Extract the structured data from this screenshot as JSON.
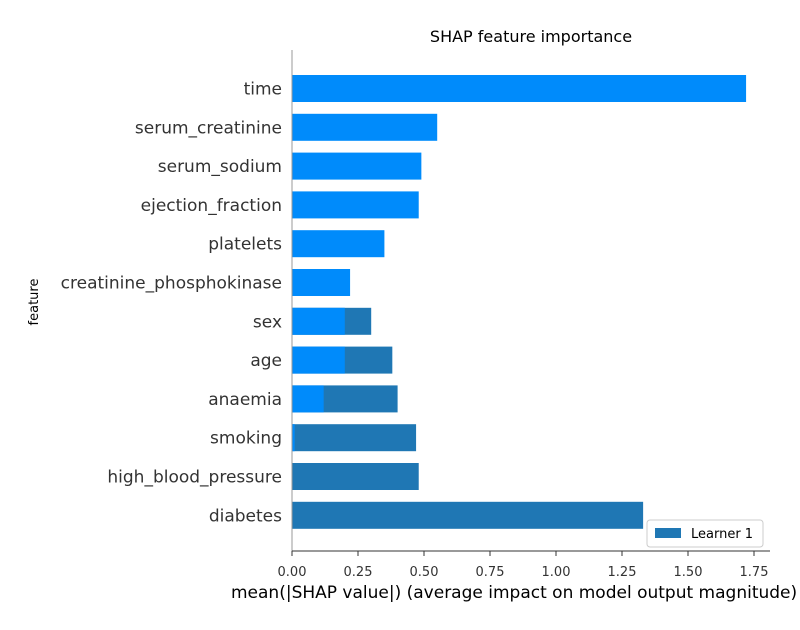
{
  "chart_data": {
    "type": "bar",
    "orientation": "horizontal",
    "title": "SHAP feature importance",
    "xlabel": "mean(|SHAP value|) (average impact on model output magnitude)",
    "ylabel": "feature",
    "xlim": [
      0,
      1.8
    ],
    "xticks": [
      "0.00",
      "0.25",
      "0.50",
      "0.75",
      "1.00",
      "1.25",
      "1.50",
      "1.75"
    ],
    "categories": [
      "time",
      "serum_creatinine",
      "serum_sodium",
      "ejection_fraction",
      "platelets",
      "creatinine_phosphokinase",
      "sex",
      "age",
      "anaemia",
      "smoking",
      "high_blood_pressure",
      "diabetes"
    ],
    "series": [
      {
        "name": "Learner 1",
        "color": "#1f77b4",
        "values": [
          0.0,
          0.0,
          0.0,
          0.0,
          0.0,
          0.0,
          0.3,
          0.38,
          0.4,
          0.47,
          0.48,
          1.33
        ]
      },
      {
        "name": "",
        "color": "#008bfb",
        "values": [
          1.72,
          0.55,
          0.49,
          0.48,
          0.35,
          0.22,
          0.2,
          0.2,
          0.12,
          0.01,
          0.0,
          0.0
        ]
      }
    ],
    "legend": {
      "entries": [
        "Learner 1"
      ],
      "placement": "bottom-right"
    },
    "grid": false
  }
}
